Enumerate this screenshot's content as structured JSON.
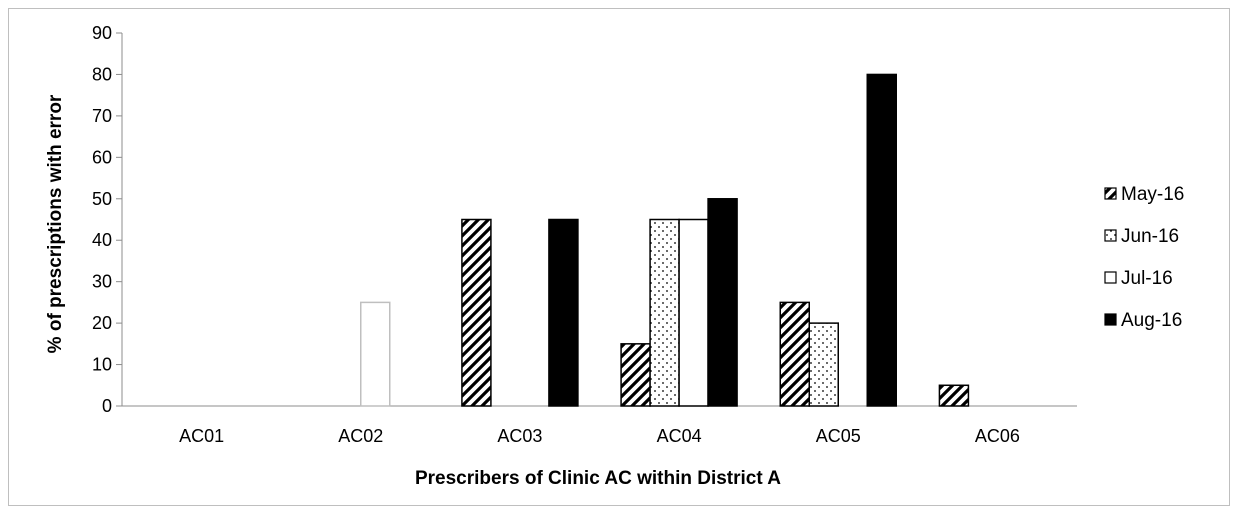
{
  "chart_data": {
    "type": "bar",
    "title": "",
    "xlabel": "Prescribers of Clinic AC within District A",
    "ylabel": "% of prescriptions with error",
    "ylim": [
      0,
      90
    ],
    "yticks": [
      0,
      10,
      20,
      30,
      40,
      50,
      60,
      70,
      80,
      90
    ],
    "grid": false,
    "legend_position": "right",
    "categories": [
      "AC01",
      "AC02",
      "AC03",
      "AC04",
      "AC05",
      "AC06"
    ],
    "series": [
      {
        "name": "May-16",
        "pattern": "diagonal-hatch",
        "values": [
          0,
          0,
          45,
          15,
          25,
          5
        ]
      },
      {
        "name": "Jun-16",
        "pattern": "dotted",
        "values": [
          0,
          0,
          0,
          45,
          20,
          0
        ]
      },
      {
        "name": "Jul-16",
        "pattern": "white",
        "values": [
          0,
          25,
          0,
          45,
          0,
          0
        ]
      },
      {
        "name": "Aug-16",
        "pattern": "solid-black",
        "values": [
          0,
          0,
          45,
          50,
          80,
          0
        ]
      }
    ]
  }
}
